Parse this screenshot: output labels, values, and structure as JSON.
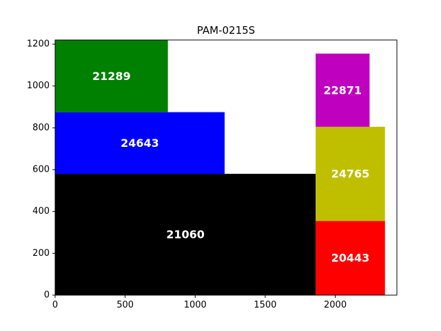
{
  "chart_data": {
    "type": "rectangle-packing",
    "title": "PAM-0215S",
    "xlim": [
      0,
      2440
    ],
    "ylim": [
      0,
      1220
    ],
    "xticks": [
      0,
      500,
      1000,
      1500,
      2000
    ],
    "yticks": [
      0,
      200,
      400,
      600,
      800,
      1000,
      1200
    ],
    "grid": false,
    "rectangles": [
      {
        "label": "21060",
        "x": 0,
        "y": 0,
        "width": 1860,
        "height": 580,
        "color": "#000000"
      },
      {
        "label": "24643",
        "x": 0,
        "y": 580,
        "width": 1210,
        "height": 295,
        "color": "#0000ff"
      },
      {
        "label": "21289",
        "x": 0,
        "y": 875,
        "width": 805,
        "height": 345,
        "color": "#008000"
      },
      {
        "label": "20443",
        "x": 1860,
        "y": 0,
        "width": 495,
        "height": 355,
        "color": "#ff0000"
      },
      {
        "label": "24765",
        "x": 1860,
        "y": 355,
        "width": 495,
        "height": 450,
        "color": "#bfbf00"
      },
      {
        "label": "22871",
        "x": 1860,
        "y": 805,
        "width": 385,
        "height": 350,
        "color": "#bf00bf"
      }
    ]
  }
}
